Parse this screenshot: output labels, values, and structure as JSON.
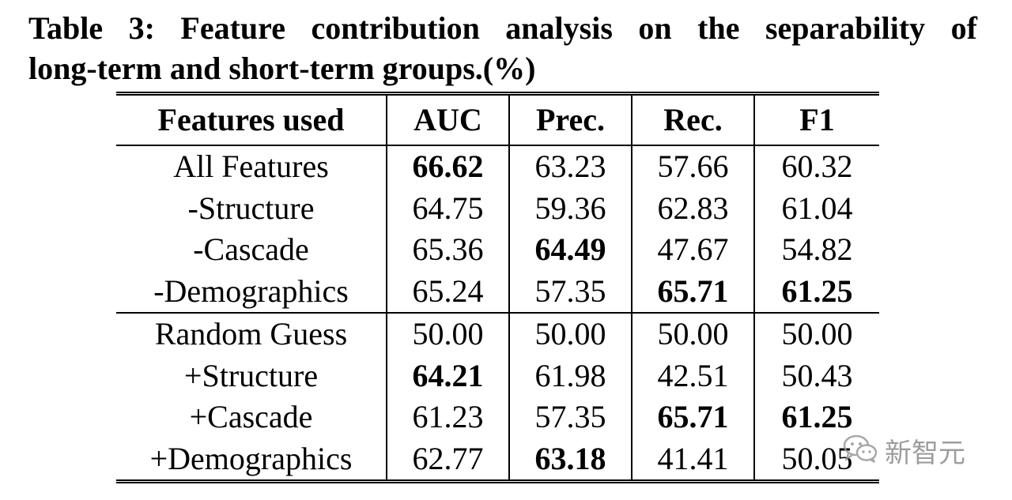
{
  "caption": {
    "line1": "Table 3: Feature contribution analysis on the separability of",
    "line2": "long-term and short-term groups.(%)"
  },
  "table": {
    "headers": [
      "Features used",
      "AUC",
      "Prec.",
      "Rec.",
      "F1"
    ],
    "groups": [
      {
        "rows": [
          {
            "feature": "All Features",
            "auc": "66.62",
            "prec": "63.23",
            "rec": "57.66",
            "f1": "60.32",
            "bold": [
              "auc"
            ]
          },
          {
            "feature": "-Structure",
            "auc": "64.75",
            "prec": "59.36",
            "rec": "62.83",
            "f1": "61.04",
            "bold": []
          },
          {
            "feature": "-Cascade",
            "auc": "65.36",
            "prec": "64.49",
            "rec": "47.67",
            "f1": "54.82",
            "bold": [
              "prec"
            ]
          },
          {
            "feature": "-Demographics",
            "auc": "65.24",
            "prec": "57.35",
            "rec": "65.71",
            "f1": "61.25",
            "bold": [
              "rec",
              "f1"
            ]
          }
        ]
      },
      {
        "rows": [
          {
            "feature": "Random Guess",
            "auc": "50.00",
            "prec": "50.00",
            "rec": "50.00",
            "f1": "50.00",
            "bold": []
          },
          {
            "feature": "+Structure",
            "auc": "64.21",
            "prec": "61.98",
            "rec": "42.51",
            "f1": "50.43",
            "bold": [
              "auc"
            ]
          },
          {
            "feature": "+Cascade",
            "auc": "61.23",
            "prec": "57.35",
            "rec": "65.71",
            "f1": "61.25",
            "bold": [
              "rec",
              "f1"
            ]
          },
          {
            "feature": "+Demographics",
            "auc": "62.77",
            "prec": "63.18",
            "rec": "41.41",
            "f1": "50.05",
            "bold": [
              "prec"
            ]
          }
        ]
      }
    ]
  },
  "watermark": {
    "text": "新智元",
    "icon": "wechat-logo-icon",
    "color": "#8d8d8d"
  }
}
